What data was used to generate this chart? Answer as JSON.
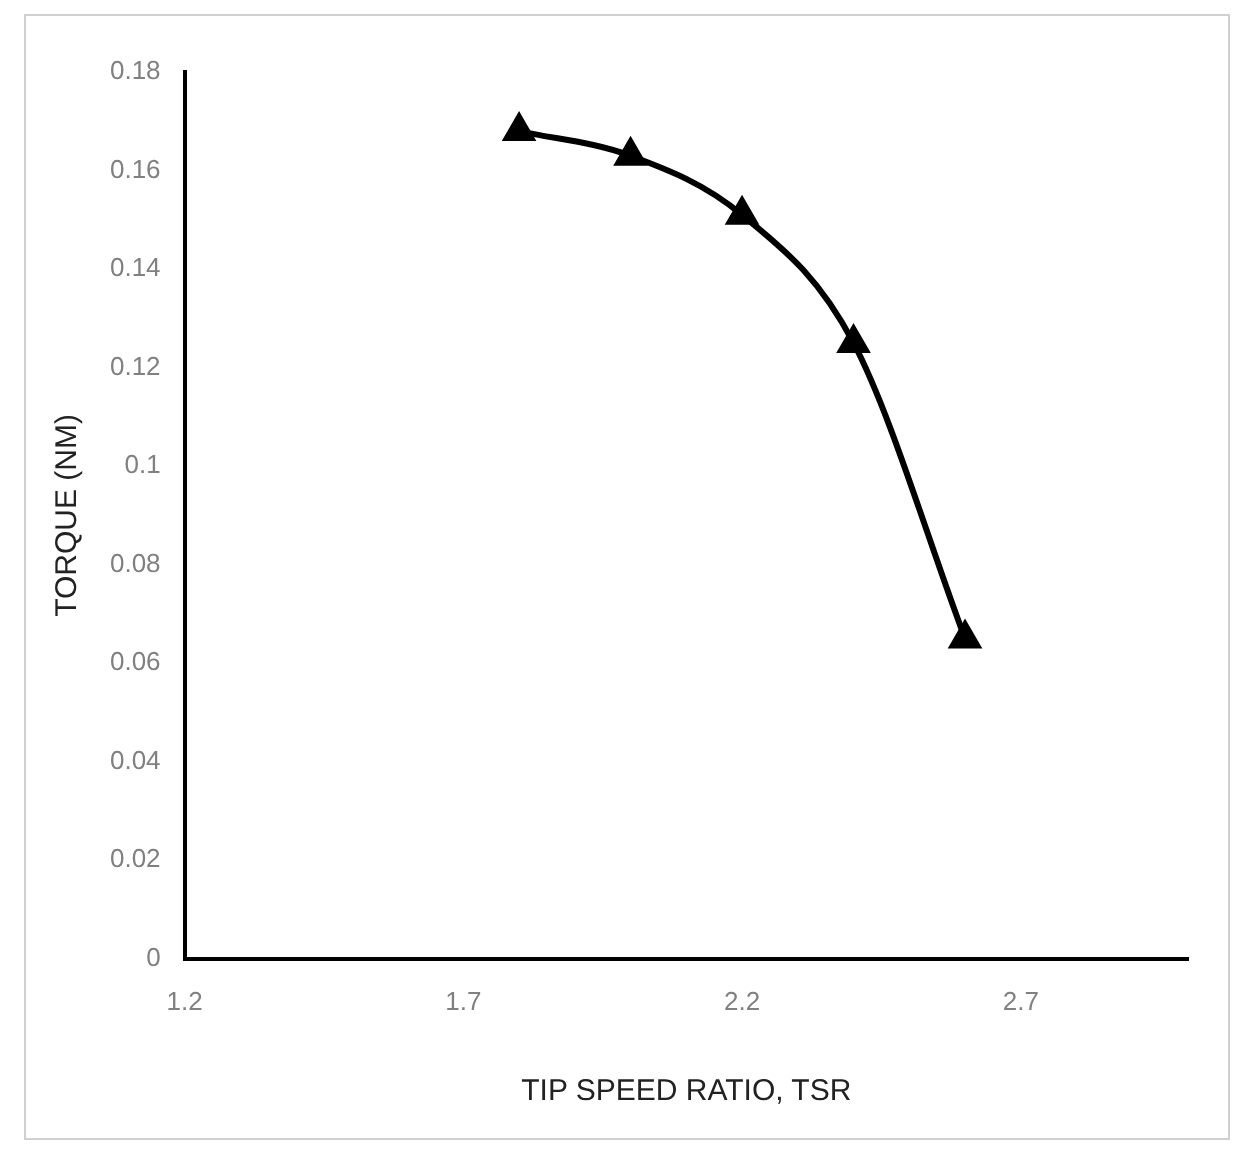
{
  "chart_data": {
    "type": "line",
    "xlabel": "TIP SPEED RATIO, TSR",
    "ylabel": "TORQUE (NM)",
    "x": [
      1.8,
      2.0,
      2.2,
      2.4,
      2.6
    ],
    "series": [
      {
        "color": "#000000",
        "values": [
          0.168,
          0.163,
          0.151,
          0.125,
          0.065
        ]
      }
    ],
    "xlim": [
      1.2,
      3.0
    ],
    "xticks": [
      1.2,
      1.7,
      2.2,
      2.7
    ],
    "ylim": [
      0,
      0.18
    ],
    "yticks": [
      0,
      0.02,
      0.04,
      0.06,
      0.08,
      0.1,
      0.12,
      0.14,
      0.16,
      0.18
    ],
    "grid": false,
    "legend": false,
    "marker": "triangle",
    "line_style": "solid"
  }
}
